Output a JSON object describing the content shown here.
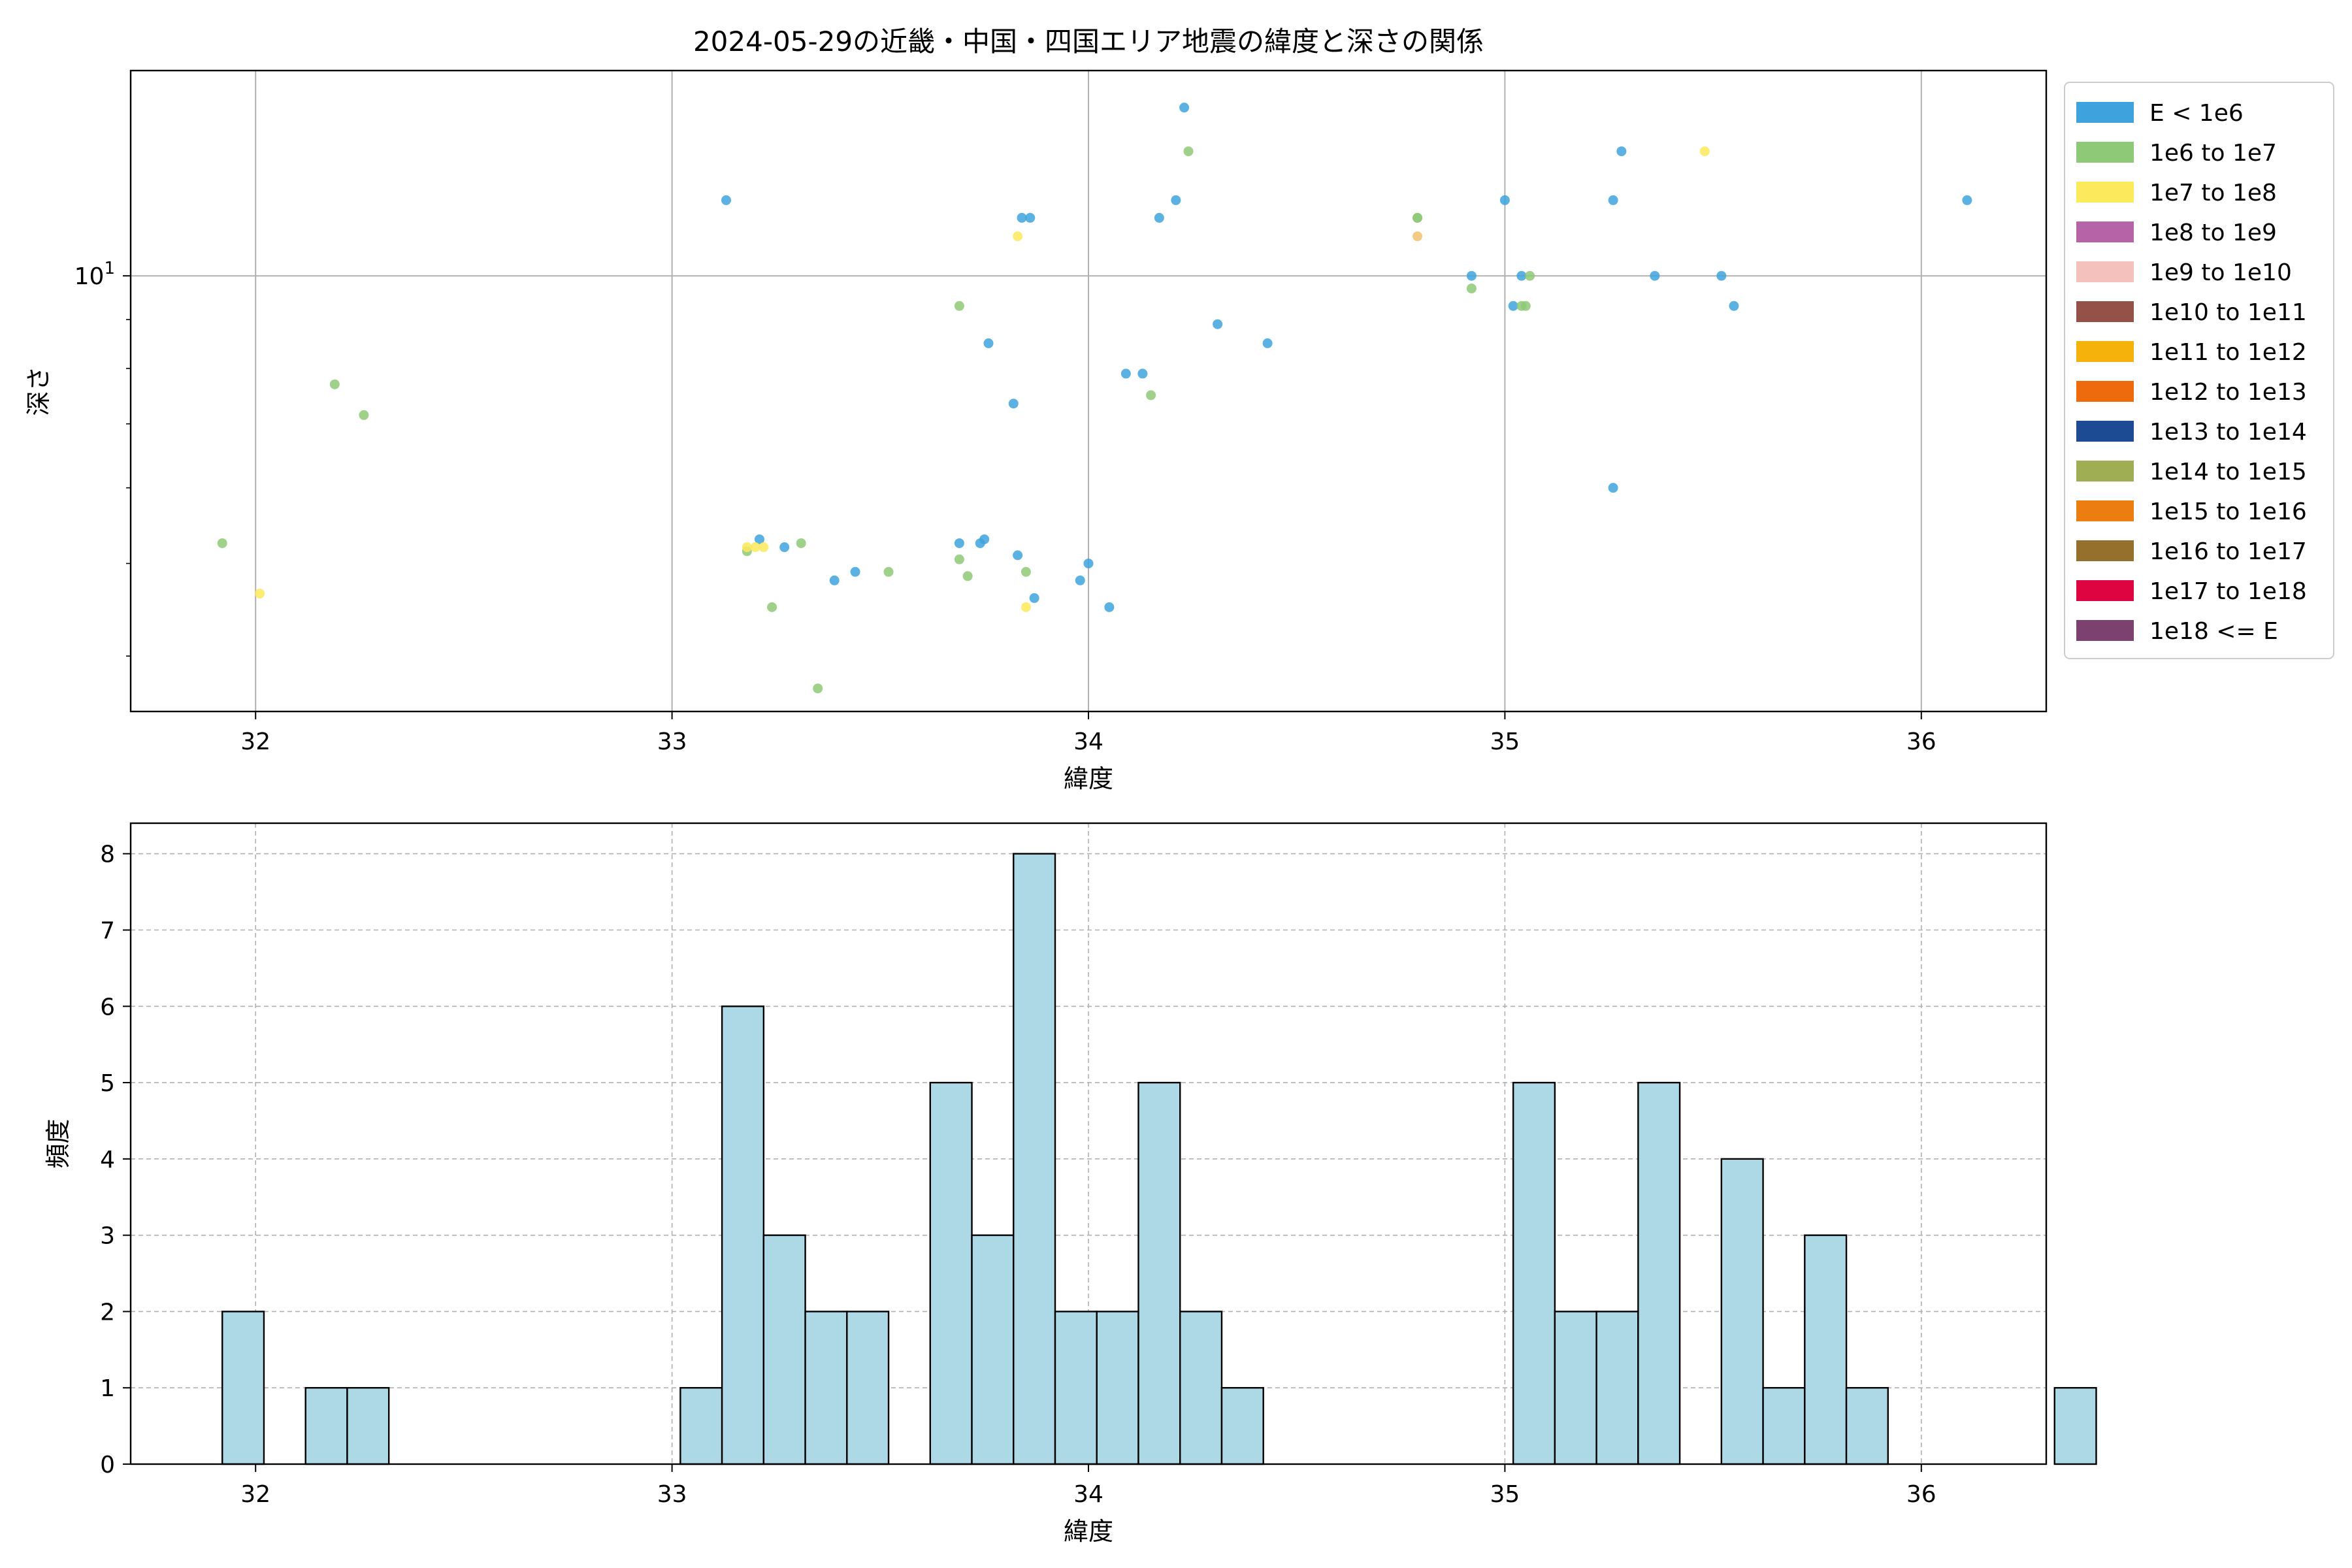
{
  "chart_data": [
    {
      "type": "scatter",
      "title": "2024-05-29の近畿・中国・四国エリア地震の緯度と深さの関係",
      "xlabel": "緯度",
      "ylabel": "深さ",
      "xlim": [
        31.7,
        36.3
      ],
      "ylim": [
        3.5,
        16.4
      ],
      "y_scale": "log",
      "x_ticks": [
        32,
        33,
        34,
        35,
        36
      ],
      "y_ticks": [
        {
          "value": 10,
          "base": "10",
          "exp": "1"
        }
      ],
      "grid": true,
      "legend_position": "outside-right",
      "legend": [
        {
          "label": "E < 1e6",
          "color": "#3ea3dc"
        },
        {
          "label": "1e6 to 1e7",
          "color": "#8ec977"
        },
        {
          "label": "1e7 to 1e8",
          "color": "#fde95c"
        },
        {
          "label": "1e8 to 1e9",
          "color": "#b663a7"
        },
        {
          "label": "1e9 to 1e10",
          "color": "#f4c1bc"
        },
        {
          "label": "1e10 to 1e11",
          "color": "#945148"
        },
        {
          "label": "1e11 to 1e12",
          "color": "#f4b20b"
        },
        {
          "label": "1e12 to 1e13",
          "color": "#ed6b0d"
        },
        {
          "label": "1e13 to 1e14",
          "color": "#1c4b94"
        },
        {
          "label": "1e14 to 1e15",
          "color": "#9fae52"
        },
        {
          "label": "1e15 to 1e16",
          "color": "#ec7d10"
        },
        {
          "label": "1e16 to 1e17",
          "color": "#956f2c"
        },
        {
          "label": "1e17 to 1e18",
          "color": "#de0441"
        },
        {
          "label": "1e18 <= E",
          "color": "#7c416e"
        }
      ],
      "series": [
        {
          "color": "#3ea3dc",
          "points": [
            [
              33.13,
              12
            ],
            [
              33.21,
              5.3
            ],
            [
              33.27,
              5.2
            ],
            [
              33.39,
              4.8
            ],
            [
              33.44,
              4.9
            ],
            [
              33.69,
              5.25
            ],
            [
              33.74,
              5.25
            ],
            [
              33.75,
              5.3
            ],
            [
              33.76,
              8.5
            ],
            [
              33.82,
              7.35
            ],
            [
              33.83,
              5.1
            ],
            [
              33.84,
              11.5
            ],
            [
              33.86,
              11.5
            ],
            [
              33.87,
              4.6
            ],
            [
              33.98,
              4.8
            ],
            [
              34.0,
              5.0
            ],
            [
              34.05,
              4.5
            ],
            [
              34.09,
              7.9
            ],
            [
              34.13,
              7.9
            ],
            [
              34.17,
              11.5
            ],
            [
              34.21,
              12
            ],
            [
              34.23,
              15
            ],
            [
              34.31,
              8.9
            ],
            [
              34.43,
              8.5
            ],
            [
              34.92,
              10
            ],
            [
              35.0,
              12
            ],
            [
              35.02,
              9.3
            ],
            [
              35.04,
              10
            ],
            [
              35.26,
              12
            ],
            [
              35.26,
              6.0
            ],
            [
              35.28,
              13.5
            ],
            [
              35.36,
              10
            ],
            [
              35.52,
              10
            ],
            [
              35.55,
              9.3
            ],
            [
              36.11,
              12
            ]
          ]
        },
        {
          "color": "#8ec977",
          "points": [
            [
              31.92,
              5.25
            ],
            [
              32.19,
              7.7
            ],
            [
              32.26,
              7.15
            ],
            [
              33.18,
              5.15
            ],
            [
              33.24,
              4.5
            ],
            [
              33.31,
              5.25
            ],
            [
              33.35,
              3.7
            ],
            [
              33.52,
              4.9
            ],
            [
              33.69,
              9.3
            ],
            [
              33.69,
              5.05
            ],
            [
              33.71,
              4.85
            ],
            [
              33.85,
              4.9
            ],
            [
              34.15,
              7.5
            ],
            [
              34.24,
              13.5
            ],
            [
              34.79,
              11.5
            ],
            [
              34.79,
              11.5
            ],
            [
              34.92,
              9.7
            ],
            [
              35.04,
              9.3
            ],
            [
              35.05,
              9.3
            ],
            [
              35.06,
              10
            ]
          ]
        },
        {
          "color": "#fde95c",
          "points": [
            [
              32.01,
              4.65
            ],
            [
              33.18,
              5.2
            ],
            [
              33.2,
              5.2
            ],
            [
              33.22,
              5.2
            ],
            [
              33.83,
              11
            ],
            [
              33.85,
              4.5
            ],
            [
              35.48,
              13.5
            ]
          ]
        },
        {
          "color": "#f2c26f",
          "points": [
            [
              34.79,
              11
            ]
          ]
        }
      ]
    },
    {
      "type": "histogram",
      "xlabel": "緯度",
      "ylabel": "頻度",
      "xlim": [
        31.7,
        36.3
      ],
      "ylim": [
        0,
        8.4
      ],
      "x_ticks": [
        32,
        33,
        34,
        35,
        36
      ],
      "y_ticks": [
        0,
        1,
        2,
        3,
        4,
        5,
        6,
        7,
        8
      ],
      "grid": true,
      "bar_color": "#add8e6",
      "bin_start": 31.92,
      "bin_width": 0.1,
      "values": [
        2,
        0,
        1,
        1,
        0,
        0,
        0,
        0,
        0,
        0,
        0,
        1,
        6,
        3,
        2,
        2,
        0,
        5,
        3,
        8,
        2,
        2,
        5,
        2,
        1,
        0,
        0,
        0,
        0,
        0,
        0,
        5,
        2,
        2,
        5,
        0,
        4,
        1,
        3,
        1,
        0,
        0,
        0,
        0,
        1
      ]
    }
  ]
}
